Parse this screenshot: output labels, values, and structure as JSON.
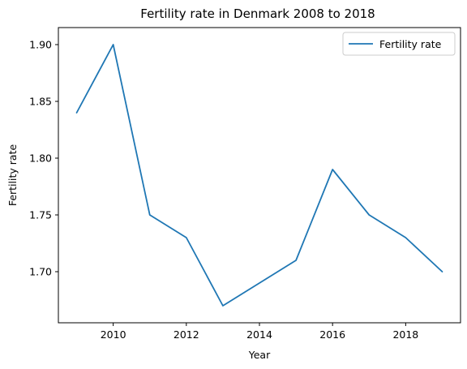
{
  "chart_data": {
    "type": "line",
    "title": "Fertility rate in Denmark 2008 to 2018",
    "xlabel": "Year",
    "ylabel": "Fertility rate",
    "xlim": [
      2008.5,
      2019.5
    ],
    "ylim": [
      1.655,
      1.915
    ],
    "xticks": [
      2010,
      2012,
      2014,
      2016,
      2018
    ],
    "yticks": [
      1.7,
      1.75,
      1.8,
      1.85,
      1.9
    ],
    "ytick_labels": [
      "1.70",
      "1.75",
      "1.80",
      "1.85",
      "1.90"
    ],
    "grid": false,
    "legend_position": "top-right",
    "series": [
      {
        "name": "Fertility rate",
        "color": "#1f77b4",
        "x": [
          2009,
          2010,
          2011,
          2012,
          2013,
          2014,
          2015,
          2016,
          2017,
          2018,
          2019
        ],
        "values": [
          1.84,
          1.9,
          1.75,
          1.73,
          1.67,
          1.69,
          1.71,
          1.79,
          1.75,
          1.73,
          1.7
        ]
      }
    ]
  }
}
